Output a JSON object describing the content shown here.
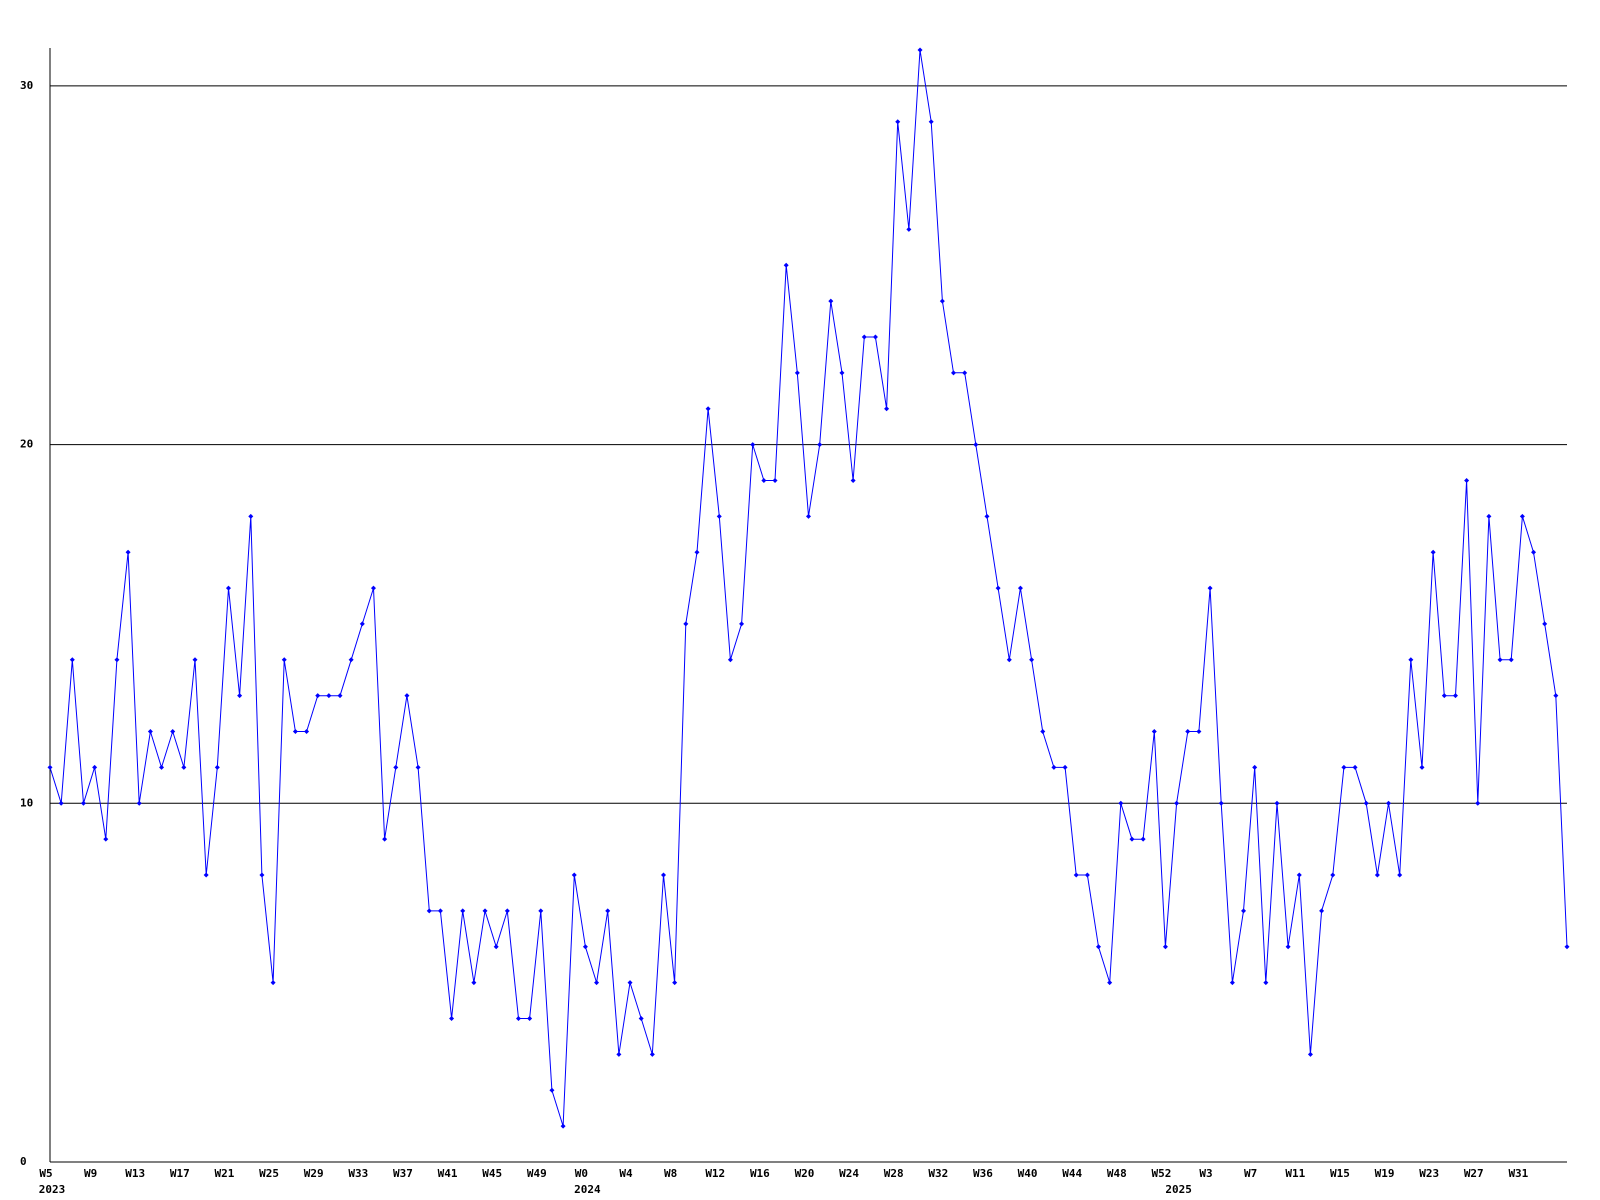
{
  "chart_data": {
    "type": "line",
    "categories": [
      "W5",
      null,
      null,
      null,
      "W9",
      null,
      null,
      null,
      "W13",
      null,
      null,
      null,
      "W17",
      null,
      null,
      null,
      "W21",
      null,
      null,
      null,
      "W25",
      null,
      null,
      null,
      "W29",
      null,
      null,
      null,
      "W33",
      null,
      null,
      null,
      "W37",
      null,
      null,
      null,
      "W41",
      null,
      null,
      null,
      "W45",
      null,
      null,
      null,
      "W49",
      null,
      null,
      null,
      "W0",
      null,
      null,
      null,
      "W4",
      null,
      null,
      null,
      "W8",
      null,
      null,
      null,
      "W12",
      null,
      null,
      null,
      "W16",
      null,
      null,
      null,
      "W20",
      null,
      null,
      null,
      "W24",
      null,
      null,
      null,
      "W28",
      null,
      null,
      null,
      "W32",
      null,
      null,
      null,
      "W36",
      null,
      null,
      null,
      "W40",
      null,
      null,
      null,
      "W44",
      null,
      null,
      null,
      "W48",
      null,
      null,
      null,
      "W52",
      null,
      null,
      null,
      "W3",
      null,
      null,
      null,
      "W7",
      null,
      null,
      null,
      "W11",
      null,
      null,
      null,
      "W15",
      null,
      null,
      null,
      "W19",
      null,
      null,
      null,
      "W23",
      null,
      null,
      null,
      "W27",
      null,
      null,
      null,
      "W31",
      null,
      null,
      null,
      null
    ],
    "years": [
      {
        "label": "2023",
        "index": 0
      },
      {
        "label": "2024",
        "index": 48
      },
      {
        "label": "2025",
        "index": 101
      }
    ],
    "series": [
      {
        "color": "#0000ff",
        "values": [
          11,
          10,
          14,
          10,
          11,
          9,
          14,
          17,
          10,
          12,
          11,
          12,
          11,
          14,
          8,
          11,
          16,
          13,
          18,
          8,
          5,
          14,
          12,
          12,
          13,
          13,
          13,
          14,
          15,
          16,
          9,
          11,
          13,
          11,
          7,
          7,
          4,
          7,
          5,
          7,
          6,
          7,
          4,
          4,
          7,
          2,
          1,
          8,
          6,
          5,
          7,
          3,
          5,
          4,
          3,
          8,
          5,
          15,
          17,
          21,
          18,
          14,
          15,
          20,
          19,
          19,
          25,
          22,
          18,
          20,
          24,
          22,
          19,
          23,
          23,
          21,
          29,
          26,
          31,
          29,
          24,
          22,
          22,
          20,
          18,
          16,
          14,
          16,
          14,
          12,
          11,
          11,
          8,
          8,
          6,
          5,
          10,
          9,
          9,
          12,
          6,
          10,
          12,
          12,
          16,
          10,
          5,
          7,
          11,
          5,
          10,
          6,
          8,
          3,
          7,
          8,
          11,
          11,
          10,
          8,
          10,
          8,
          14,
          11,
          17,
          13,
          13,
          19,
          10,
          18,
          14,
          14,
          18,
          17,
          15,
          13,
          6
        ]
      }
    ],
    "ylim": [
      0,
      31
    ],
    "yticks": [
      0,
      10,
      20,
      30
    ],
    "grid": true
  }
}
